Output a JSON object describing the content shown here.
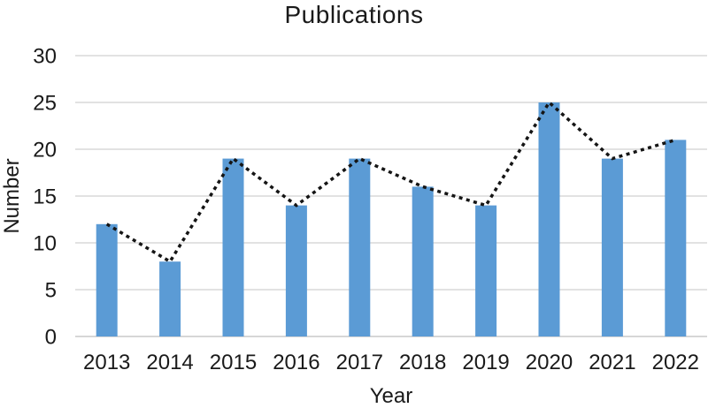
{
  "chart_data": {
    "type": "bar",
    "title": "Publications",
    "xlabel": "Year",
    "ylabel": "Number",
    "categories": [
      "2013",
      "2014",
      "2015",
      "2016",
      "2017",
      "2018",
      "2019",
      "2020",
      "2021",
      "2022"
    ],
    "series": [
      {
        "name": "publications-bars",
        "type": "bar",
        "values": [
          12,
          8,
          19,
          14,
          19,
          16,
          14,
          25,
          19,
          21
        ]
      },
      {
        "name": "publications-trend-dotted-line",
        "type": "line",
        "values": [
          12,
          8,
          19,
          14,
          19,
          16,
          14,
          25,
          19,
          21
        ]
      }
    ],
    "ylim": [
      0,
      30
    ],
    "y_ticks": [
      0,
      5,
      10,
      15,
      20,
      25,
      30
    ],
    "grid": "horizontal",
    "legend": "none",
    "colors": {
      "bar": "#5B9BD5",
      "line": "#151515",
      "grid": "#D9D9D9",
      "axis": "#C9C9C9",
      "text": "#1a1a1a"
    }
  }
}
